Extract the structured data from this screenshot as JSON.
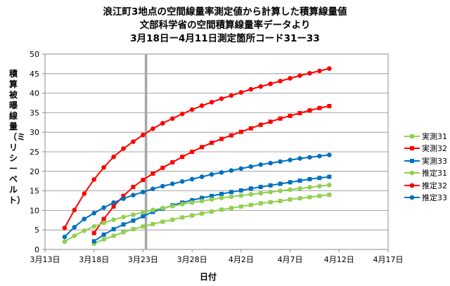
{
  "title": {
    "line1": "浪江町3地点の空間線量率測定値から計算した積算線量値",
    "line2": "文部科学省の空間積算線量率データより",
    "line3": "3月18日ー4月11日測定箇所コード31ー33"
  },
  "chart_data": {
    "type": "line",
    "xlabel": "日付",
    "ylabel": "積算被曝線量（ミリシーベルト）",
    "x_ticks": [
      "3月13日",
      "3月18日",
      "3月23日",
      "3月28日",
      "4月2日",
      "4月7日",
      "4月12日",
      "4月17日"
    ],
    "x_tick_days": [
      13,
      18,
      23,
      28,
      33,
      38,
      43,
      48
    ],
    "xlim": [
      13,
      48
    ],
    "ylim": [
      0,
      50
    ],
    "y_ticks": [
      0,
      5,
      10,
      15,
      20,
      25,
      30,
      35,
      40,
      45,
      50
    ],
    "grid": true,
    "legend_position": "right",
    "marker_line_x_day": 23.3,
    "series": [
      {
        "name": "実測31",
        "color": "#92D050",
        "marker": "square",
        "x": [
          18,
          19,
          20,
          21,
          22,
          23,
          24,
          25,
          26,
          27,
          28,
          29,
          30,
          31,
          32,
          33,
          34,
          35,
          36,
          37,
          38,
          39,
          40,
          41,
          42
        ],
        "y": [
          1.5,
          2.6,
          3.5,
          4.4,
          5.2,
          5.9,
          6.5,
          7.1,
          7.6,
          8.2,
          8.7,
          9.2,
          9.7,
          10.2,
          10.6,
          11.0,
          11.4,
          11.8,
          12.1,
          12.4,
          12.8,
          13.1,
          13.4,
          13.7,
          14.0
        ]
      },
      {
        "name": "実測32",
        "color": "#FF0000",
        "marker": "square",
        "x": [
          18,
          19,
          20,
          21,
          22,
          23,
          24,
          25,
          26,
          27,
          28,
          29,
          30,
          31,
          32,
          33,
          34,
          35,
          36,
          37,
          38,
          39,
          40,
          41,
          42
        ],
        "y": [
          4.2,
          7.8,
          11.0,
          13.7,
          16.0,
          17.8,
          19.4,
          20.9,
          22.3,
          23.7,
          25.0,
          26.2,
          27.3,
          28.3,
          29.2,
          30.1,
          31.0,
          31.9,
          32.7,
          33.5,
          34.2,
          34.9,
          35.6,
          36.2,
          36.7
        ]
      },
      {
        "name": "実測33",
        "color": "#0070C0",
        "marker": "square",
        "x": [
          18,
          19,
          20,
          21,
          22,
          23,
          24,
          25,
          26,
          27,
          28,
          29,
          30,
          31,
          32,
          33,
          34,
          35,
          36,
          37,
          38,
          39,
          40,
          41,
          42
        ],
        "y": [
          2.1,
          3.8,
          5.2,
          6.4,
          7.4,
          8.5,
          9.6,
          10.4,
          11.3,
          12.0,
          12.6,
          13.2,
          13.7,
          14.2,
          14.7,
          15.1,
          15.6,
          16.0,
          16.4,
          16.8,
          17.2,
          17.6,
          18.0,
          18.3,
          18.6
        ]
      },
      {
        "name": "推定31",
        "color": "#92D050",
        "marker": "circle",
        "x": [
          15,
          16,
          17,
          18,
          19,
          20,
          21,
          22,
          23,
          24,
          25,
          26,
          27,
          28,
          29,
          30,
          31,
          32,
          33,
          34,
          35,
          36,
          37,
          38,
          39,
          40,
          41,
          42
        ],
        "y": [
          2.0,
          3.5,
          4.8,
          5.9,
          6.8,
          7.6,
          8.3,
          8.9,
          9.5,
          10.1,
          10.6,
          11.1,
          11.6,
          12.0,
          12.4,
          12.8,
          13.2,
          13.5,
          13.8,
          14.1,
          14.4,
          14.7,
          15.0,
          15.3,
          15.6,
          15.9,
          16.2,
          16.5
        ]
      },
      {
        "name": "推定32",
        "color": "#FF0000",
        "marker": "circle",
        "x": [
          15,
          16,
          17,
          18,
          19,
          20,
          21,
          22,
          23,
          24,
          25,
          26,
          27,
          28,
          29,
          30,
          31,
          32,
          33,
          34,
          35,
          36,
          37,
          38,
          39,
          40,
          41,
          42
        ],
        "y": [
          5.5,
          10.1,
          14.3,
          17.9,
          21.0,
          23.7,
          25.8,
          27.6,
          29.3,
          30.9,
          32.3,
          33.5,
          34.7,
          35.8,
          36.8,
          37.7,
          38.6,
          39.4,
          40.2,
          41.0,
          41.7,
          42.4,
          43.1,
          43.8,
          44.5,
          45.1,
          45.7,
          46.3
        ]
      },
      {
        "name": "推定33",
        "color": "#0070C0",
        "marker": "circle",
        "x": [
          15,
          16,
          17,
          18,
          19,
          20,
          21,
          22,
          23,
          24,
          25,
          26,
          27,
          28,
          29,
          30,
          31,
          32,
          33,
          34,
          35,
          36,
          37,
          38,
          39,
          40,
          41,
          42
        ],
        "y": [
          3.2,
          5.7,
          7.8,
          9.3,
          10.7,
          12.0,
          13.0,
          13.9,
          14.7,
          15.5,
          16.2,
          16.8,
          17.4,
          18.0,
          18.6,
          19.2,
          19.7,
          20.2,
          20.7,
          21.2,
          21.7,
          22.1,
          22.5,
          22.9,
          23.3,
          23.6,
          23.9,
          24.2
        ]
      }
    ]
  }
}
